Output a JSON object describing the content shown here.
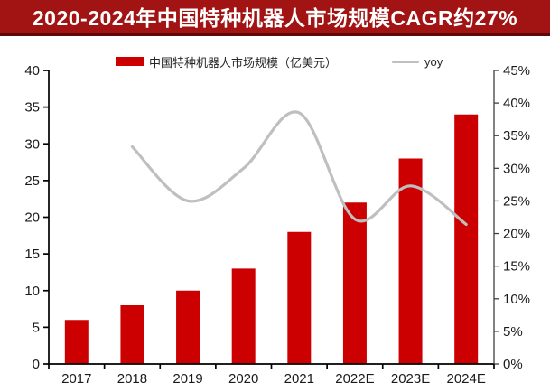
{
  "header": {
    "title": "2020-2024年中国特种机器人市场规模CAGR约27%",
    "bg_color": "#A21313",
    "border_color": "#5E0808",
    "text_color": "#FFFFFF"
  },
  "legend": [
    {
      "label": "中国特种机器人市场规模（亿美元）",
      "marker": "bar-swatch",
      "color": "#CC0000"
    },
    {
      "label": "yoy",
      "marker": "line-swatch",
      "color": "#BFBFBF"
    }
  ],
  "chart_data": {
    "type": "bar",
    "title": "2020-2024年中国特种机器人市场规模CAGR约27%",
    "categories": [
      "2017",
      "2018",
      "2019",
      "2020",
      "2021",
      "2022E",
      "2023E",
      "2024E"
    ],
    "series": [
      {
        "name": "中国特种机器人市场规模（亿美元）",
        "type": "bar",
        "axis": "left",
        "color": "#CC0000",
        "values": [
          6,
          8,
          10,
          13,
          18,
          22,
          28,
          34
        ]
      },
      {
        "name": "yoy",
        "type": "line",
        "axis": "right",
        "color": "#BFBFBF",
        "smooth": true,
        "values": [
          null,
          33.3,
          25.0,
          30.0,
          38.5,
          22.2,
          27.3,
          21.4
        ]
      }
    ],
    "left_axis": {
      "min": 0,
      "max": 40,
      "step": 5,
      "ticks": [
        "0",
        "5",
        "10",
        "15",
        "20",
        "25",
        "30",
        "35",
        "40"
      ]
    },
    "right_axis": {
      "min": 0,
      "max": 45,
      "step": 5,
      "ticks": [
        "0%",
        "5%",
        "10%",
        "15%",
        "20%",
        "25%",
        "30%",
        "35%",
        "40%",
        "45%"
      ]
    },
    "xlabel": "",
    "ylabel": "",
    "grid": false,
    "legend_position": "top"
  }
}
